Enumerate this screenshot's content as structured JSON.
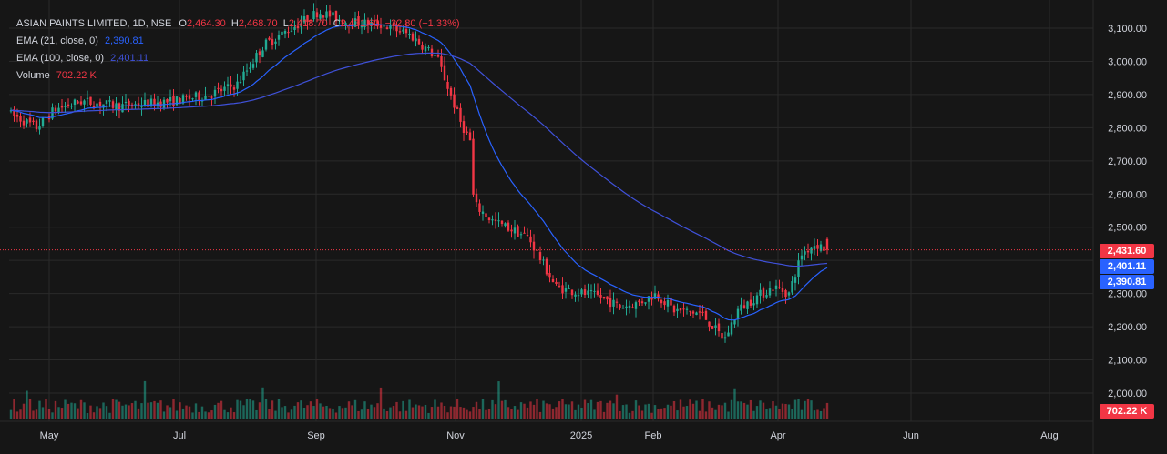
{
  "legend": {
    "symbol": "ASIAN PAINTS LIMITED, 1D, NSE",
    "o_label": "O",
    "o_value": "2,464.30",
    "h_label": "H",
    "h_value": "2,468.70",
    "l_label": "L",
    "l_value": "2,418.70",
    "c_label": "C",
    "c_value": "2,431.60",
    "change": "−32.80 (−1.33%)",
    "ema21_label": "EMA (21, close, 0)",
    "ema21_value": "2,390.81",
    "ema100_label": "EMA (100, close, 0)",
    "ema100_value": "2,401.11",
    "volume_label": "Volume",
    "volume_value": "702.22 K"
  },
  "price_axis": {
    "ticks": [
      "3,100.00",
      "3,000.00",
      "2,900.00",
      "2,800.00",
      "2,700.00",
      "2,600.00",
      "2,500.00",
      "2,300.00",
      "2,200.00",
      "2,100.00",
      "2,000.00"
    ]
  },
  "price_tags": {
    "last_price": "2,431.60",
    "ema100": "2,401.11",
    "ema21": "2,390.81",
    "volume": "702.22 K"
  },
  "time_axis": {
    "labels": [
      "May",
      "Jul",
      "Sep",
      "Nov",
      "2025",
      "Feb",
      "Apr",
      "Jun",
      "Aug"
    ]
  },
  "colors": {
    "up": "#22ab94",
    "down": "#f23645",
    "ema": "#2962ff",
    "ema100": "#3f51d9",
    "background": "#161616",
    "grid": "#2a2a2a"
  },
  "chart_data": {
    "type": "candlestick",
    "symbol": "ASIAN PAINTS LIMITED",
    "interval": "1D",
    "exchange": "NSE",
    "ylim": [
      1980,
      3140
    ],
    "y_ticks": [
      2000,
      2100,
      2200,
      2300,
      2400,
      2500,
      2600,
      2700,
      2800,
      2900,
      3000,
      3100
    ],
    "x_labels": [
      "May",
      "Jul",
      "Sep",
      "Nov",
      "2025",
      "Feb",
      "Apr",
      "Jun",
      "Aug"
    ],
    "last": {
      "open": 2464.3,
      "high": 2468.7,
      "low": 2418.7,
      "close": 2431.6
    },
    "ema21_last": 2390.81,
    "ema100_last": 2401.11,
    "volume_last": "702.22 K",
    "approx_close_path": [
      {
        "x": "Apr 2024",
        "close": 2850
      },
      {
        "x": "May 2024",
        "close": 2860
      },
      {
        "x": "Jun 2024",
        "close": 2880
      },
      {
        "x": "Jul 2024",
        "close": 2910
      },
      {
        "x": "Aug 2024",
        "close": 3050
      },
      {
        "x": "Sep 2024",
        "close": 3150
      },
      {
        "x": "Oct 2024",
        "close": 3050
      },
      {
        "x": "Nov 2024",
        "close": 2500
      },
      {
        "x": "Dec 2024",
        "close": 2300
      },
      {
        "x": "Jan 2025",
        "close": 2280
      },
      {
        "x": "Feb 2025",
        "close": 2250
      },
      {
        "x": "Mar 2025",
        "close": 2300
      },
      {
        "x": "Apr 2025",
        "close": 2431.6
      }
    ]
  }
}
